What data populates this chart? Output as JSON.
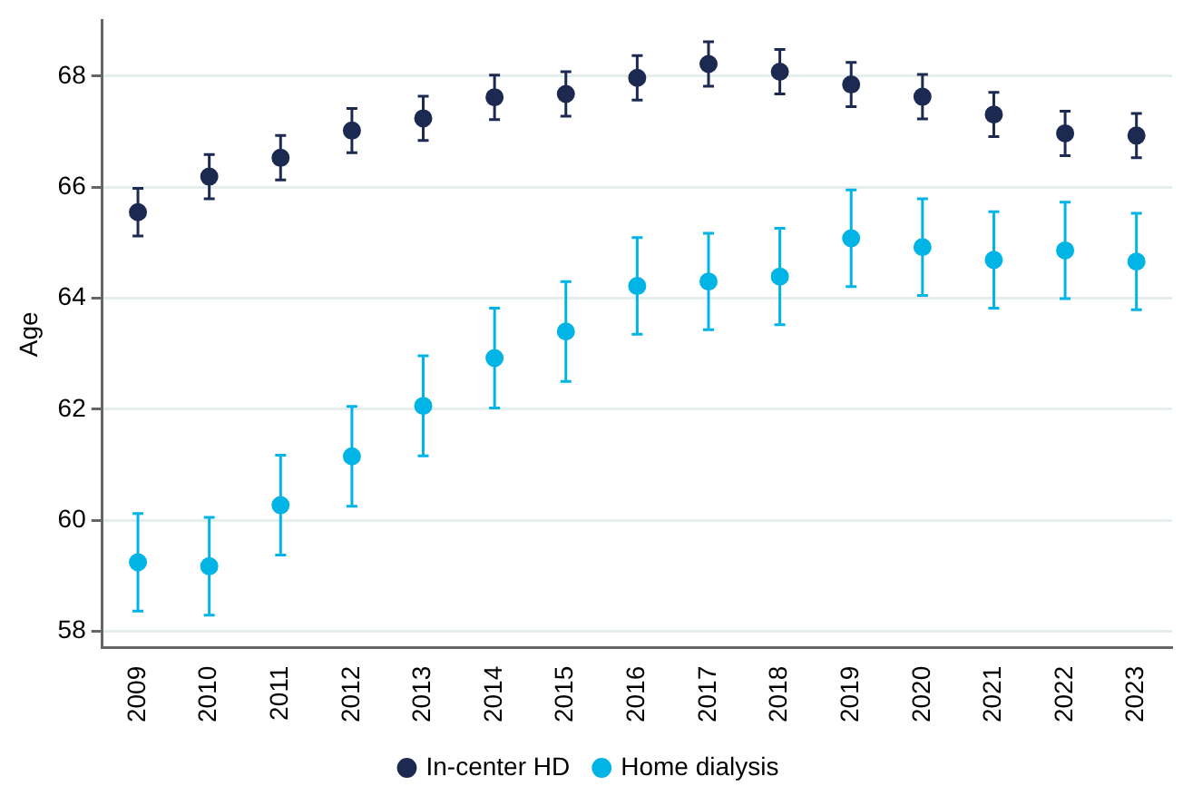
{
  "chart_data": {
    "type": "scatter",
    "ylabel": "Age",
    "categories": [
      "2009",
      "2010",
      "2011",
      "2012",
      "2013",
      "2014",
      "2015",
      "2016",
      "2017",
      "2018",
      "2019",
      "2020",
      "2021",
      "2022",
      "2023"
    ],
    "series": [
      {
        "name": "In-center HD",
        "color": "#1c2a52",
        "values": [
          65.55,
          66.19,
          66.53,
          67.02,
          67.24,
          67.62,
          67.68,
          67.97,
          68.22,
          68.08,
          67.85,
          67.63,
          67.31,
          66.97,
          66.93
        ],
        "errors": [
          0.43,
          0.4,
          0.4,
          0.4,
          0.4,
          0.4,
          0.4,
          0.4,
          0.4,
          0.4,
          0.4,
          0.4,
          0.4,
          0.4,
          0.4
        ]
      },
      {
        "name": "Home dialysis",
        "color": "#00b4e6",
        "values": [
          59.24,
          59.17,
          60.27,
          61.15,
          62.06,
          62.92,
          63.4,
          64.22,
          64.3,
          64.39,
          65.08,
          64.92,
          64.69,
          64.86,
          64.66
        ],
        "errors": [
          0.88,
          0.88,
          0.9,
          0.9,
          0.9,
          0.9,
          0.9,
          0.87,
          0.87,
          0.87,
          0.87,
          0.87,
          0.87,
          0.87,
          0.87
        ]
      }
    ],
    "ylim": [
      57.7,
      69
    ],
    "yticks": [
      58,
      60,
      62,
      64,
      66,
      68
    ],
    "grid": "y",
    "legend": "bottom",
    "marker": "circle"
  }
}
